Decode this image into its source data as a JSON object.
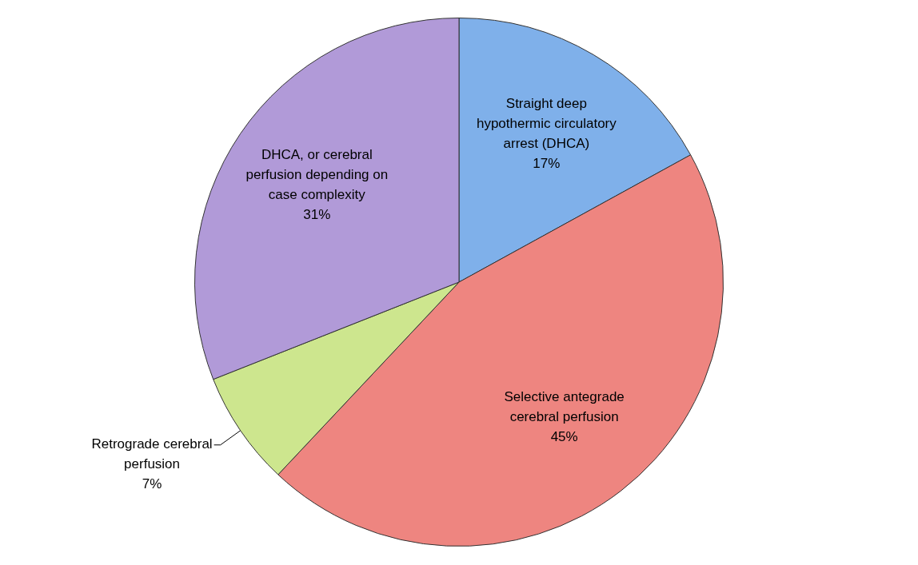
{
  "chart_data": {
    "type": "pie",
    "categories": [
      "Straight deep hypothermic circulatory arrest (DHCA)",
      "Selective antegrade cerebral perfusion",
      "Retrograde cerebral perfusion",
      "DHCA, or cerebral perfusion depending on case complexity"
    ],
    "values": [
      17,
      45,
      7,
      31
    ],
    "value_labels": [
      "17%",
      "45%",
      "7%",
      "31%"
    ],
    "colors": [
      "#7fb0ea",
      "#ee8580",
      "#cde68e",
      "#b19ad8"
    ],
    "legend": false
  }
}
